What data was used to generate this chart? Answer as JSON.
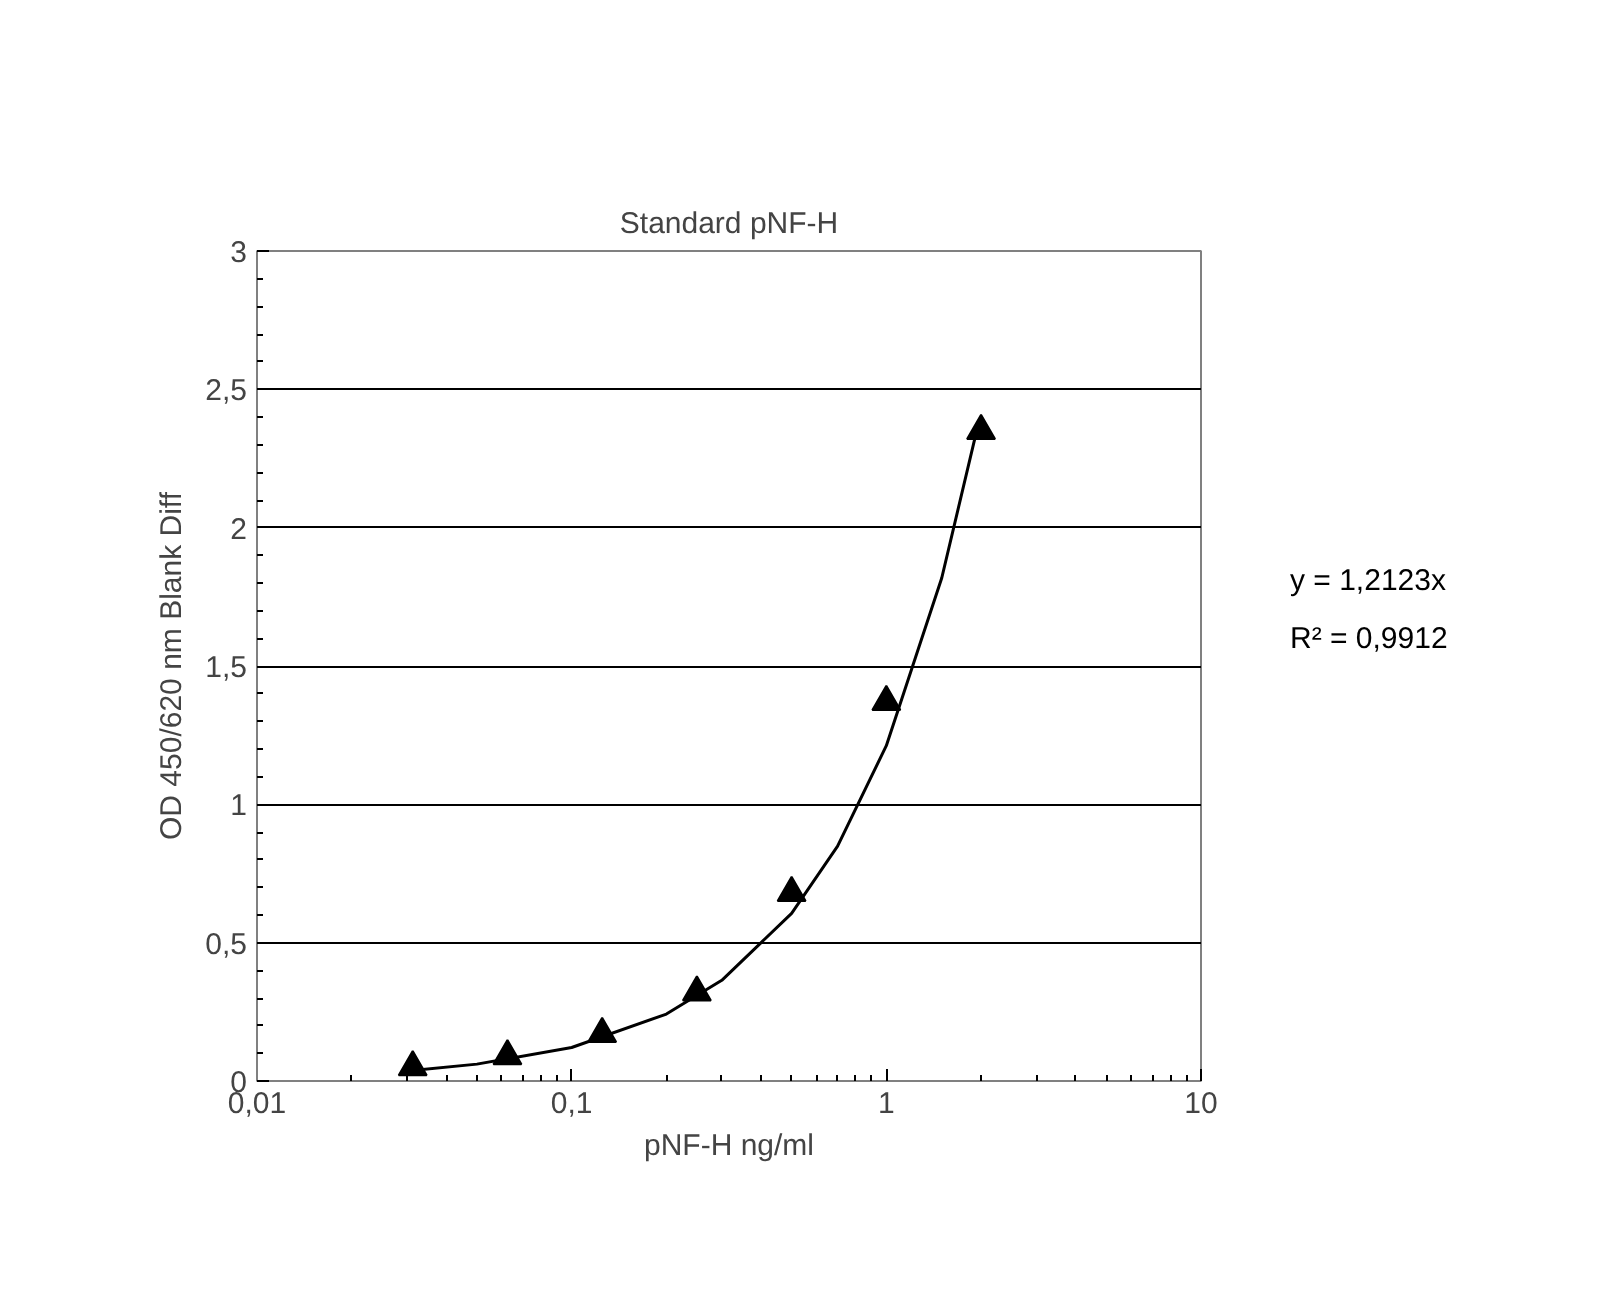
{
  "chart_data": {
    "type": "scatter",
    "title": "Standard pNF-H",
    "xlabel": "pNF-H ng/ml",
    "ylabel": "OD 450/620 nm Blank Diff",
    "log": "x",
    "xlim": [
      0.01,
      10
    ],
    "xticks": [
      {
        "value": 0.01,
        "label": "0,01"
      },
      {
        "value": 0.1,
        "label": "0,1"
      },
      1,
      10
    ],
    "ylim": [
      0,
      3
    ],
    "yticks": [
      0,
      {
        "value": 0.5,
        "label": "0,5"
      },
      1,
      {
        "value": 1.5,
        "label": "1,5"
      },
      2,
      {
        "value": 2.5,
        "label": "2,5"
      },
      3
    ],
    "grid": "y",
    "series": [
      {
        "type": "scatter",
        "marker": "triangle",
        "color": "#000000",
        "x": [
          0.03125,
          0.0625,
          0.125,
          0.25,
          0.5,
          1,
          2
        ],
        "values": [
          0.05,
          0.09,
          0.17,
          0.32,
          0.68,
          1.37,
          2.35
        ]
      },
      {
        "type": "line",
        "marker": "none",
        "line_style": "solid",
        "color": "#000000",
        "x": [
          0.03,
          0.05,
          0.1,
          0.2,
          0.3,
          0.5,
          0.7,
          1,
          1.5,
          1.95
        ],
        "values": [
          0.036,
          0.061,
          0.121,
          0.242,
          0.364,
          0.606,
          0.849,
          1.212,
          1.818,
          2.364
        ]
      }
    ],
    "annotations": [
      "y = 1,2123x",
      "R² = 0,9912"
    ]
  }
}
